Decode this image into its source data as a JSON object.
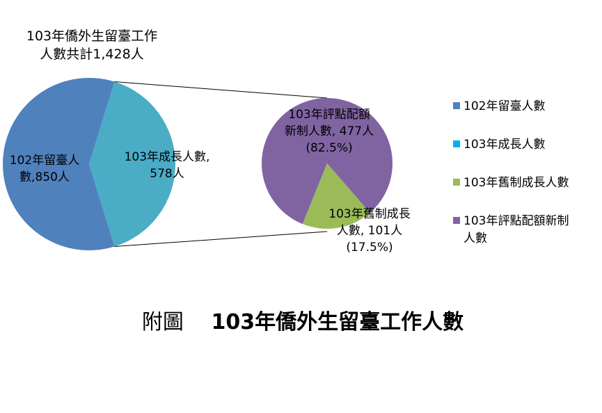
{
  "chart_data": {
    "type": "pie",
    "subtype": "pie-of-pie",
    "total_label": [
      "103年僑外生留臺工作",
      "人數共計1,428人"
    ],
    "main_pie": {
      "slices": [
        {
          "name": "102年留臺人數",
          "value": 850,
          "color": "#4f81bd",
          "label_lines": [
            "102年留臺人",
            "數,850人"
          ]
        },
        {
          "name": "103年成長人數",
          "value": 578,
          "color": "#4bacc6",
          "label_lines": [
            "103年成長人數,",
            "578人"
          ]
        }
      ]
    },
    "secondary_pie": {
      "slices": [
        {
          "name": "103年評點配額新制人數",
          "value": 477,
          "percent": "82.5%",
          "color": "#8064a2",
          "label_lines": [
            "103年評點配額",
            "新制人數, 477人",
            "(82.5%)"
          ]
        },
        {
          "name": "103年舊制成長人數",
          "value": 101,
          "percent": "17.5%",
          "color": "#9bbb59",
          "label_lines": [
            "103年舊制成長",
            "人數, 101人",
            "(17.5%)"
          ]
        }
      ]
    },
    "legend": [
      {
        "label_lines": [
          "102年留臺人數"
        ],
        "color": "#4f81bd"
      },
      {
        "label_lines": [
          "103年成長人數"
        ],
        "color": "#00b0f0"
      },
      {
        "label_lines": [
          "103年舊制成長人數"
        ],
        "color": "#9bbb59"
      },
      {
        "label_lines": [
          "103年評點配額新制",
          "人數"
        ],
        "color": "#8064a2"
      }
    ],
    "legend_position": "right",
    "caption_prefix": "附圖",
    "caption_title": "103年僑外生留臺工作人數"
  }
}
